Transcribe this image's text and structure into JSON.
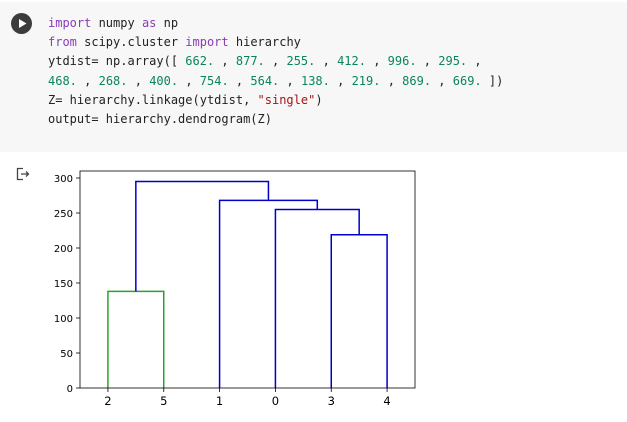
{
  "code_cell": {
    "lines": [
      [
        {
          "t": "import",
          "c": "kw"
        },
        {
          "t": " numpy "
        },
        {
          "t": "as",
          "c": "kw"
        },
        {
          "t": " np"
        }
      ],
      [
        {
          "t": "from",
          "c": "kw"
        },
        {
          "t": " scipy.cluster "
        },
        {
          "t": "import",
          "c": "kw"
        },
        {
          "t": " hierarchy"
        }
      ],
      [
        {
          "t": "ytdist= np.array([ "
        },
        {
          "t": "662.",
          "c": "num"
        },
        {
          "t": " , "
        },
        {
          "t": "877.",
          "c": "num"
        },
        {
          "t": " , "
        },
        {
          "t": "255.",
          "c": "num"
        },
        {
          "t": " , "
        },
        {
          "t": "412.",
          "c": "num"
        },
        {
          "t": " , "
        },
        {
          "t": "996.",
          "c": "num"
        },
        {
          "t": " , "
        },
        {
          "t": "295.",
          "c": "num"
        },
        {
          "t": " ,"
        }
      ],
      [
        {
          "t": "468.",
          "c": "num"
        },
        {
          "t": " , "
        },
        {
          "t": "268.",
          "c": "num"
        },
        {
          "t": " , "
        },
        {
          "t": "400.",
          "c": "num"
        },
        {
          "t": " , "
        },
        {
          "t": "754.",
          "c": "num"
        },
        {
          "t": " , "
        },
        {
          "t": "564.",
          "c": "num"
        },
        {
          "t": " , "
        },
        {
          "t": "138.",
          "c": "num"
        },
        {
          "t": " , "
        },
        {
          "t": "219.",
          "c": "num"
        },
        {
          "t": " , "
        },
        {
          "t": "869.",
          "c": "num"
        },
        {
          "t": " , "
        },
        {
          "t": "669.",
          "c": "num"
        },
        {
          "t": " ])"
        }
      ],
      [
        {
          "t": "Z= hierarchy.linkage(ytdist, "
        },
        {
          "t": "\"single\"",
          "c": "str"
        },
        {
          "t": ")"
        }
      ],
      [
        {
          "t": "output= hierarchy.dendrogram(Z)"
        }
      ]
    ]
  },
  "icons": {
    "run": "play-icon",
    "output": "output-arrow-icon"
  },
  "colors": {
    "cluster_green": "#2ca02c",
    "cluster_blue": "#0000cc",
    "code_bg": "#f7f7f7"
  },
  "chart_data": {
    "type": "dendrogram",
    "leaf_order": [
      "2",
      "5",
      "1",
      "0",
      "3",
      "4"
    ],
    "yticks": [
      0,
      50,
      100,
      150,
      200,
      250,
      300
    ],
    "ylim": [
      0,
      310
    ],
    "links": [
      {
        "left": {
          "leaf": 0
        },
        "right": {
          "leaf": 1
        },
        "height": 138,
        "color": "green"
      },
      {
        "left": {
          "leaf": 4
        },
        "right": {
          "leaf": 5
        },
        "height": 219,
        "color": "blue"
      },
      {
        "left": {
          "leaf": 3
        },
        "right": {
          "link": 1
        },
        "height": 255,
        "color": "blue"
      },
      {
        "left": {
          "leaf": 2
        },
        "right": {
          "link": 2
        },
        "height": 268,
        "color": "blue"
      },
      {
        "left": {
          "link": 0
        },
        "right": {
          "link": 3
        },
        "height": 295,
        "color": "blue"
      }
    ]
  }
}
